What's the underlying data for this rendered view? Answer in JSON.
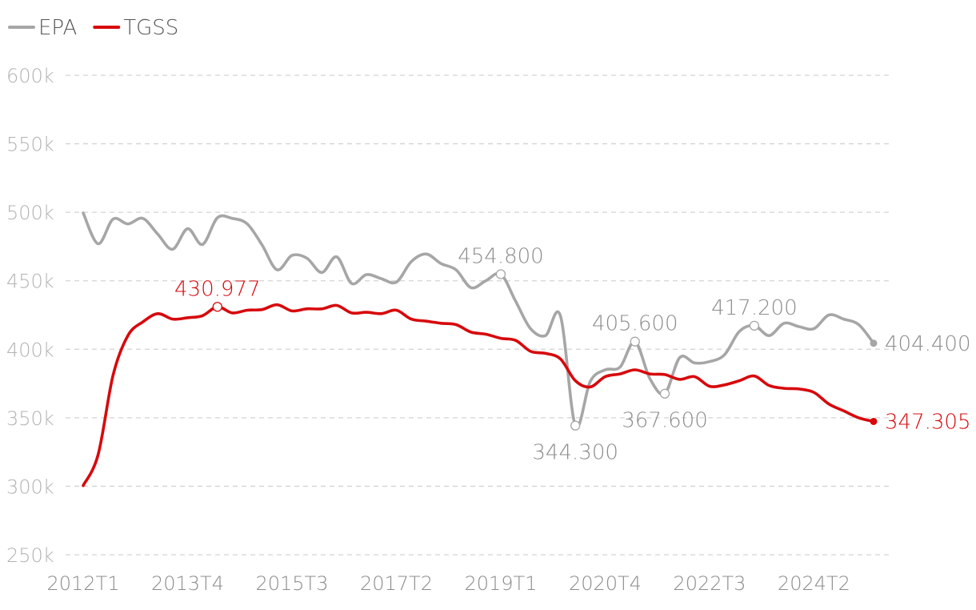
{
  "chart_data": {
    "type": "line",
    "ylim": [
      250000,
      600000
    ],
    "y_ticks": [
      {
        "value": 250000,
        "label": "250k"
      },
      {
        "value": 300000,
        "label": "300k"
      },
      {
        "value": 350000,
        "label": "350k"
      },
      {
        "value": 400000,
        "label": "400k"
      },
      {
        "value": 450000,
        "label": "450k"
      },
      {
        "value": 500000,
        "label": "500k"
      },
      {
        "value": 550000,
        "label": "550k"
      },
      {
        "value": 600000,
        "label": "600k"
      }
    ],
    "grid": true,
    "legend_position": "top-left",
    "x": [
      "2012T1",
      "2012T2",
      "2012T3",
      "2012T4",
      "2013T1",
      "2013T2",
      "2013T3",
      "2013T4",
      "2014T1",
      "2014T2",
      "2014T3",
      "2014T4",
      "2015T1",
      "2015T2",
      "2015T3",
      "2015T4",
      "2016T1",
      "2016T2",
      "2016T3",
      "2016T4",
      "2017T1",
      "2017T2",
      "2017T3",
      "2017T4",
      "2018T1",
      "2018T2",
      "2018T3",
      "2018T4",
      "2019T1",
      "2019T2",
      "2019T3",
      "2019T4",
      "2020T1",
      "2020T2",
      "2020T3",
      "2020T4",
      "2021T1",
      "2021T2",
      "2021T3",
      "2021T4",
      "2022T1",
      "2022T2",
      "2022T3",
      "2022T4",
      "2023T1",
      "2023T2",
      "2023T3",
      "2023T4",
      "2024T1",
      "2024T2",
      "2024T3",
      "2024T4",
      "2025T1",
      "2025T2"
    ],
    "x_tick_labels": [
      "2012T1",
      "2013T4",
      "2015T3",
      "2017T2",
      "2019T1",
      "2020T4",
      "2022T3",
      "2024T2"
    ],
    "series": [
      {
        "name": "EPA",
        "color": "#a6a6a6",
        "values": [
          499500,
          477000,
          495000,
          491500,
          495500,
          484000,
          473000,
          488000,
          476500,
          496000,
          495500,
          491500,
          476000,
          458000,
          468500,
          466500,
          456000,
          467500,
          448000,
          454500,
          451500,
          449000,
          464000,
          469500,
          462500,
          458000,
          445000,
          450000,
          454800,
          435000,
          415000,
          410000,
          424500,
          344300,
          376500,
          385000,
          387000,
          405600,
          378500,
          367600,
          394000,
          390000,
          391000,
          396000,
          413000,
          417200,
          410000,
          419000,
          416500,
          415000,
          425000,
          422000,
          418000,
          404400
        ],
        "annotations": [
          {
            "index": 28,
            "label": "454.800"
          },
          {
            "index": 33,
            "label": "344.300"
          },
          {
            "index": 37,
            "label": "405.600"
          },
          {
            "index": 39,
            "label": "367.600"
          },
          {
            "index": 45,
            "label": "417.200"
          },
          {
            "index": 53,
            "label": "404.400"
          }
        ]
      },
      {
        "name": "TGSS",
        "color": "#d7090c",
        "values": [
          300500,
          323000,
          381000,
          410000,
          420000,
          426000,
          422000,
          423000,
          424500,
          430977,
          426500,
          428500,
          429000,
          432500,
          428000,
          429500,
          429500,
          432000,
          426500,
          427000,
          426000,
          428500,
          422000,
          420500,
          419000,
          418000,
          412500,
          411000,
          408000,
          406500,
          398500,
          397000,
          393000,
          377000,
          372500,
          380000,
          382000,
          385000,
          382000,
          381500,
          378000,
          380000,
          373000,
          374000,
          377000,
          380500,
          373500,
          371500,
          371000,
          368500,
          360000,
          355000,
          350000,
          347305
        ],
        "annotations": [
          {
            "index": 9,
            "label": "430.977"
          },
          {
            "index": 53,
            "label": "347.305"
          }
        ]
      }
    ]
  }
}
